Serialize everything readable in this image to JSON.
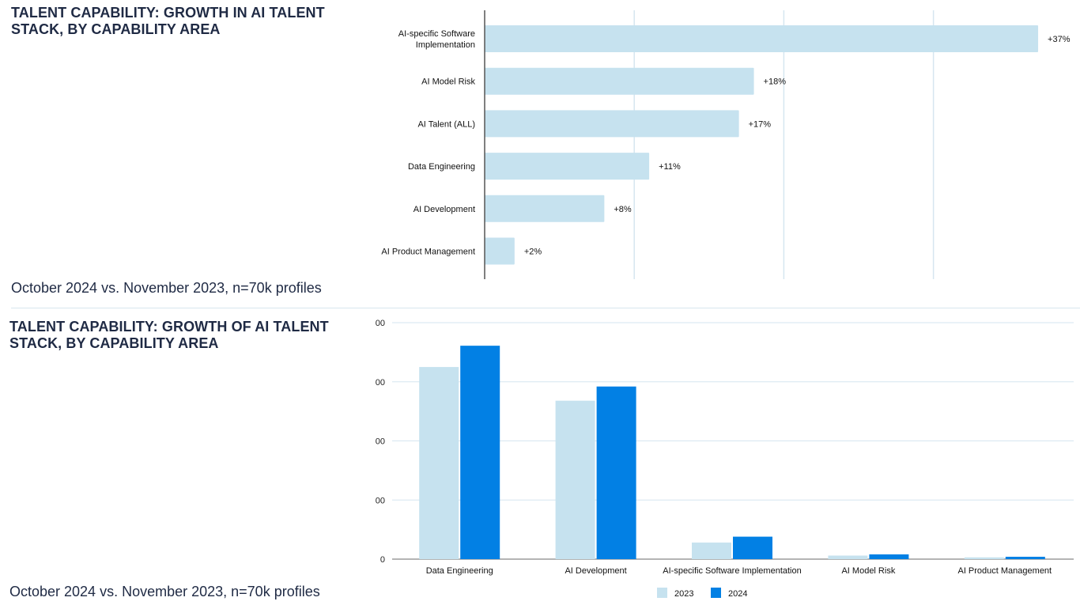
{
  "colors": {
    "c2023": "#c6e2ef",
    "c2024": "#0280e4",
    "grid": "#d6e6f0",
    "axis": "#555555"
  },
  "chart_data": [
    {
      "type": "bar",
      "orientation": "horizontal",
      "title": "TALENT CAPABILITY: GROWTH IN AI TALENT STACK, BY CAPABILITY AREA",
      "subtitle": "October 2024 vs. November 2023, n=70k profiles",
      "categories": [
        [
          "AI-specific Software",
          "Implementation"
        ],
        [
          "AI Model Risk"
        ],
        [
          "AI Talent (ALL)"
        ],
        [
          "Data Engineering"
        ],
        [
          "AI Development"
        ],
        [
          "AI Product Management"
        ]
      ],
      "values": [
        37,
        18,
        17,
        11,
        8,
        2
      ],
      "labels": [
        "+37%",
        "+18%",
        "+17%",
        "+11%",
        "+8%",
        "+2%"
      ],
      "xlim": [
        0,
        40
      ],
      "unit": "%",
      "grid": true
    },
    {
      "type": "bar",
      "orientation": "vertical",
      "title": "TALENT CAPABILITY: GROWTH OF AI TALENT STACK, BY CAPABILITY AREA",
      "subtitle": "October 2024 vs. November 2023, n=70k profiles",
      "categories": [
        "Data Engineering",
        "AI Development",
        "AI-specific Software Implementation",
        "AI Model Risk",
        "AI Product Management"
      ],
      "ytick_labels": [
        "0",
        "00",
        "00",
        "00",
        "00"
      ],
      "ylim": [
        0,
        400
      ],
      "series": [
        {
          "name": "2023",
          "values": [
            325,
            268,
            28,
            6,
            3
          ]
        },
        {
          "name": "2024",
          "values": [
            361,
            292,
            38,
            8,
            4
          ]
        }
      ],
      "legend_position": "bottom",
      "grid": true
    }
  ]
}
